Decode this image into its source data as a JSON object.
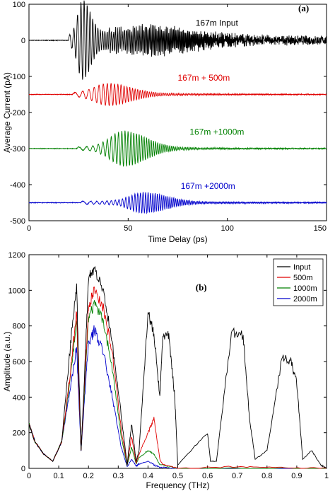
{
  "chart_data": [
    {
      "type": "line",
      "panel_label": "(a)",
      "xlabel": "Time Delay (ps)",
      "ylabel": "Average Current (pA)",
      "xlim": [
        0,
        150
      ],
      "ylim": [
        -500,
        100
      ],
      "xticks": [
        "0",
        "50",
        "100",
        "150"
      ],
      "yticks": [
        "100",
        "0",
        "-100",
        "-200",
        "-300",
        "-400",
        "-500"
      ],
      "grid": false,
      "series": [
        {
          "name": "167m Input",
          "color": "#000000",
          "baseline": 0,
          "onset": 20,
          "peak_time": 27,
          "peak_amplitude": 95,
          "end_time": 150
        },
        {
          "name": "167m  + 500m",
          "color": "#e00000",
          "baseline": -150,
          "onset": 22,
          "peak_time": 40,
          "peak_amplitude": 27,
          "end_time": 150
        },
        {
          "name": "167m  +1000m",
          "color": "#008000",
          "baseline": -300,
          "onset": 24,
          "peak_time": 48,
          "peak_amplitude": 45,
          "end_time": 150
        },
        {
          "name": "167m  +2000m",
          "color": "#0000cc",
          "baseline": -450,
          "onset": 26,
          "peak_time": 58,
          "peak_amplitude": 25,
          "end_time": 150
        }
      ]
    },
    {
      "type": "line",
      "panel_label": "(b)",
      "xlabel": "Frequency (THz)",
      "ylabel": "Amplitude (a.u.)",
      "xlim": [
        0,
        1
      ],
      "ylim": [
        0,
        1200
      ],
      "xticks": [
        "0",
        "0.1",
        "0.2",
        "0.3",
        "0.4",
        "0.5",
        "0.6",
        "0.7",
        "0.8",
        "0.9",
        "1"
      ],
      "yticks": [
        "1200",
        "1000",
        "800",
        "600",
        "400",
        "200",
        "0"
      ],
      "grid": false,
      "legend": "top-right",
      "series": [
        {
          "name": "Input",
          "color": "#000000",
          "points": [
            [
              0.0,
              250
            ],
            [
              0.02,
              150
            ],
            [
              0.05,
              80
            ],
            [
              0.08,
              40
            ],
            [
              0.11,
              150
            ],
            [
              0.14,
              700
            ],
            [
              0.16,
              1030
            ],
            [
              0.175,
              100
            ],
            [
              0.185,
              450
            ],
            [
              0.2,
              1080
            ],
            [
              0.22,
              1120
            ],
            [
              0.25,
              1000
            ],
            [
              0.28,
              700
            ],
            [
              0.31,
              300
            ],
            [
              0.33,
              20
            ],
            [
              0.345,
              250
            ],
            [
              0.36,
              40
            ],
            [
              0.37,
              100
            ],
            [
              0.4,
              880
            ],
            [
              0.42,
              750
            ],
            [
              0.44,
              400
            ],
            [
              0.45,
              750
            ],
            [
              0.47,
              740
            ],
            [
              0.49,
              400
            ],
            [
              0.5,
              20
            ],
            [
              0.6,
              200
            ],
            [
              0.61,
              40
            ],
            [
              0.63,
              40
            ],
            [
              0.68,
              760
            ],
            [
              0.72,
              750
            ],
            [
              0.74,
              300
            ],
            [
              0.76,
              50
            ],
            [
              0.8,
              100
            ],
            [
              0.85,
              620
            ],
            [
              0.88,
              600
            ],
            [
              0.9,
              480
            ],
            [
              0.92,
              50
            ],
            [
              0.95,
              100
            ],
            [
              0.98,
              20
            ],
            [
              1.0,
              0
            ]
          ]
        },
        {
          "name": "500m",
          "color": "#e00000",
          "points": [
            [
              0.0,
              250
            ],
            [
              0.02,
              150
            ],
            [
              0.05,
              80
            ],
            [
              0.08,
              40
            ],
            [
              0.11,
              150
            ],
            [
              0.14,
              550
            ],
            [
              0.16,
              880
            ],
            [
              0.175,
              100
            ],
            [
              0.185,
              420
            ],
            [
              0.2,
              900
            ],
            [
              0.22,
              1010
            ],
            [
              0.25,
              900
            ],
            [
              0.28,
              650
            ],
            [
              0.31,
              220
            ],
            [
              0.33,
              20
            ],
            [
              0.345,
              180
            ],
            [
              0.36,
              30
            ],
            [
              0.37,
              80
            ],
            [
              0.4,
              200
            ],
            [
              0.42,
              280
            ],
            [
              0.44,
              50
            ],
            [
              0.45,
              20
            ],
            [
              0.5,
              0
            ],
            [
              0.7,
              10
            ],
            [
              0.85,
              5
            ],
            [
              1.0,
              0
            ]
          ]
        },
        {
          "name": "1000m",
          "color": "#008000",
          "points": [
            [
              0.0,
              250
            ],
            [
              0.02,
              150
            ],
            [
              0.05,
              80
            ],
            [
              0.08,
              40
            ],
            [
              0.11,
              150
            ],
            [
              0.14,
              520
            ],
            [
              0.16,
              830
            ],
            [
              0.175,
              100
            ],
            [
              0.185,
              400
            ],
            [
              0.2,
              850
            ],
            [
              0.22,
              920
            ],
            [
              0.25,
              830
            ],
            [
              0.28,
              560
            ],
            [
              0.31,
              180
            ],
            [
              0.33,
              15
            ],
            [
              0.345,
              120
            ],
            [
              0.36,
              25
            ],
            [
              0.37,
              60
            ],
            [
              0.4,
              100
            ],
            [
              0.42,
              80
            ],
            [
              0.44,
              20
            ],
            [
              0.5,
              0
            ],
            [
              1.0,
              0
            ]
          ]
        },
        {
          "name": "2000m",
          "color": "#0000cc",
          "points": [
            [
              0.0,
              250
            ],
            [
              0.02,
              150
            ],
            [
              0.05,
              80
            ],
            [
              0.08,
              40
            ],
            [
              0.11,
              150
            ],
            [
              0.14,
              460
            ],
            [
              0.16,
              680
            ],
            [
              0.175,
              100
            ],
            [
              0.185,
              350
            ],
            [
              0.2,
              700
            ],
            [
              0.22,
              780
            ],
            [
              0.25,
              650
            ],
            [
              0.28,
              400
            ],
            [
              0.31,
              120
            ],
            [
              0.33,
              10
            ],
            [
              0.345,
              50
            ],
            [
              0.36,
              15
            ],
            [
              0.37,
              25
            ],
            [
              0.4,
              40
            ],
            [
              0.42,
              20
            ],
            [
              0.44,
              5
            ],
            [
              0.5,
              0
            ],
            [
              1.0,
              0
            ]
          ]
        }
      ]
    }
  ]
}
